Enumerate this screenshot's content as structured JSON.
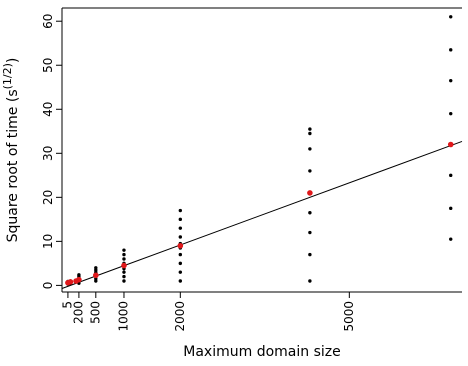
{
  "chart_data": {
    "type": "scatter",
    "xlabel": "Maximum domain size",
    "ylabel_main": "Square root of time (s",
    "ylabel_sup": "(1/2)",
    "ylabel_close": ")",
    "xlim": [
      -100,
      7000
    ],
    "ylim": [
      -1.5,
      63
    ],
    "x_ticks": [
      5,
      200,
      500,
      1000,
      2000,
      5000
    ],
    "x_tick_labels": [
      "5",
      "200",
      "500",
      "1000",
      "2000",
      "5000"
    ],
    "y_ticks": [
      0,
      10,
      20,
      30,
      40,
      50,
      60
    ],
    "y_tick_labels": [
      "0",
      "10",
      "20",
      "30",
      "40",
      "50",
      "60"
    ],
    "grid": false,
    "legend": "none",
    "fit_line": {
      "x": [
        -100,
        7000
      ],
      "y": [
        -0.7,
        32.7
      ]
    },
    "series": [
      {
        "role": "observations",
        "color": "#000000",
        "points": [
          [
            5,
            0.3
          ],
          [
            5,
            0.6
          ],
          [
            5,
            0.9
          ],
          [
            50,
            0.4
          ],
          [
            50,
            0.7
          ],
          [
            50,
            1.0
          ],
          [
            200,
            0.5
          ],
          [
            200,
            0.9
          ],
          [
            200,
            1.3
          ],
          [
            200,
            1.7
          ],
          [
            200,
            2.1
          ],
          [
            200,
            2.4
          ],
          [
            500,
            1.0
          ],
          [
            500,
            1.5
          ],
          [
            500,
            2.0
          ],
          [
            500,
            2.5
          ],
          [
            500,
            3.0
          ],
          [
            500,
            3.5
          ],
          [
            500,
            4.0
          ],
          [
            1000,
            1.0
          ],
          [
            1000,
            2.0
          ],
          [
            1000,
            3.0
          ],
          [
            1000,
            3.8
          ],
          [
            1000,
            4.5
          ],
          [
            1000,
            5.0
          ],
          [
            1000,
            6.0
          ],
          [
            1000,
            7.0
          ],
          [
            1000,
            8.0
          ],
          [
            2000,
            1.0
          ],
          [
            2000,
            3.0
          ],
          [
            2000,
            5.0
          ],
          [
            2000,
            7.0
          ],
          [
            2000,
            8.5
          ],
          [
            2000,
            9.5
          ],
          [
            2000,
            11.0
          ],
          [
            2000,
            13.0
          ],
          [
            2000,
            15.0
          ],
          [
            2000,
            17.0
          ],
          [
            4300,
            1.0
          ],
          [
            4300,
            7.0
          ],
          [
            4300,
            12.0
          ],
          [
            4300,
            16.5
          ],
          [
            4300,
            21.0
          ],
          [
            4300,
            26.0
          ],
          [
            4300,
            31.0
          ],
          [
            4300,
            34.5
          ],
          [
            4300,
            35.5
          ],
          [
            6800,
            10.5
          ],
          [
            6800,
            17.5
          ],
          [
            6800,
            25.0
          ],
          [
            6800,
            32.0
          ],
          [
            6800,
            39.0
          ],
          [
            6800,
            46.5
          ],
          [
            6800,
            53.5
          ],
          [
            6800,
            61.0
          ]
        ]
      },
      {
        "role": "means",
        "color": "#e0181b",
        "points": [
          [
            5,
            0.6
          ],
          [
            50,
            0.8
          ],
          [
            150,
            1.0
          ],
          [
            200,
            1.3
          ],
          [
            500,
            2.3
          ],
          [
            1000,
            4.5
          ],
          [
            2000,
            9.0
          ],
          [
            4300,
            21.0
          ],
          [
            6800,
            32.0
          ]
        ]
      }
    ]
  }
}
